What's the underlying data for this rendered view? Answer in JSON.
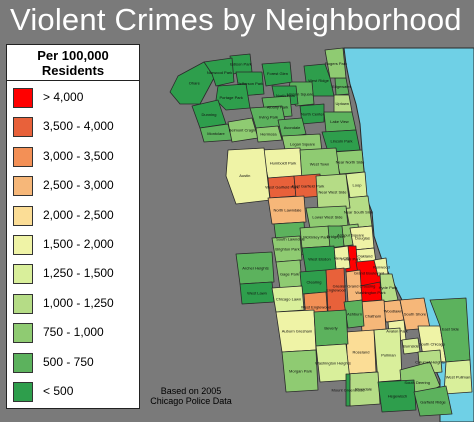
{
  "title": "Violent Crimes by Neighborhood",
  "legend": {
    "title_line1": "Per 100,000",
    "title_line2": "Residents",
    "items": [
      {
        "label": "> 4,000",
        "color": "#ff0000"
      },
      {
        "label": "3,500 - 4,000",
        "color": "#e8613a"
      },
      {
        "label": "3,000 - 3,500",
        "color": "#f39056"
      },
      {
        "label": "2,500 - 3,000",
        "color": "#f6b779"
      },
      {
        "label": "2,000 - 2,500",
        "color": "#fbdd96"
      },
      {
        "label": "1,500 - 2,000",
        "color": "#eff3a6"
      },
      {
        "label": "1,250 - 1,500",
        "color": "#d9ef9b"
      },
      {
        "label": "1,000 - 1,250",
        "color": "#b5dc86"
      },
      {
        "label": "750 - 1,000",
        "color": "#8fcb72"
      },
      {
        "label": "500 - 750",
        "color": "#5cb25d"
      },
      {
        "label": "< 500",
        "color": "#2e9e4c"
      }
    ]
  },
  "source_line1": "Based on 2005",
  "source_line2": "Chicago Police Data",
  "colors": {
    "background": "#7a7a7a",
    "lake": "#6fd0e6",
    "border": "#2a2a2a"
  },
  "neighborhoods": [
    {
      "name": "Edgewater",
      "category": 9
    },
    {
      "name": "Uptown",
      "category": 7
    },
    {
      "name": "West Ridge",
      "category": 10
    },
    {
      "name": "Rogers Park",
      "category": 8
    },
    {
      "name": "Lincoln Square",
      "category": 9
    },
    {
      "name": "North Center",
      "category": 10
    },
    {
      "name": "Lake View",
      "category": 9
    },
    {
      "name": "Lincoln Park",
      "category": 10
    },
    {
      "name": "Near North Side",
      "category": 8
    },
    {
      "name": "Loop",
      "category": 6
    },
    {
      "name": "Near South Side",
      "category": 7
    },
    {
      "name": "Ohare",
      "category": 10
    },
    {
      "name": "Edison Park",
      "category": 10
    },
    {
      "name": "Norwood Park",
      "category": 10
    },
    {
      "name": "Jefferson Park",
      "category": 10
    },
    {
      "name": "Forest Glen",
      "category": 10
    },
    {
      "name": "North Park",
      "category": 10
    },
    {
      "name": "Albany Park",
      "category": 9
    },
    {
      "name": "Portage Park",
      "category": 10
    },
    {
      "name": "Irving Park",
      "category": 9
    },
    {
      "name": "Dunning",
      "category": 10
    },
    {
      "name": "Montclare",
      "category": 9
    },
    {
      "name": "Belmont Cragin",
      "category": 8
    },
    {
      "name": "Hermosa",
      "category": 8
    },
    {
      "name": "Avondale",
      "category": 9
    },
    {
      "name": "Logan Square",
      "category": 8
    },
    {
      "name": "Humboldt Park",
      "category": 5
    },
    {
      "name": "West Town",
      "category": 8
    },
    {
      "name": "Austin",
      "category": 5
    },
    {
      "name": "West Garfield Park",
      "category": 1
    },
    {
      "name": "East Garfield Park",
      "category": 1
    },
    {
      "name": "Near West Side",
      "category": 7
    },
    {
      "name": "North Lawndale",
      "category": 3
    },
    {
      "name": "South Lawndale",
      "category": 9
    },
    {
      "name": "Lower West Side",
      "category": 8
    },
    {
      "name": "Armour Square",
      "category": 8
    },
    {
      "name": "Douglas",
      "category": 5
    },
    {
      "name": "Oakland",
      "category": 5
    },
    {
      "name": "Fuller Park",
      "category": 0
    },
    {
      "name": "Grand Boulevard",
      "category": 0
    },
    {
      "name": "Kenwood",
      "category": 5
    },
    {
      "name": "Washington Park",
      "category": 0
    },
    {
      "name": "Hyde Park",
      "category": 7
    },
    {
      "name": "Woodlawn",
      "category": 3
    },
    {
      "name": "South Shore",
      "category": 3
    },
    {
      "name": "Chatham",
      "category": 3
    },
    {
      "name": "Avalon Park",
      "category": 5
    },
    {
      "name": "South Chicago",
      "category": 5
    },
    {
      "name": "Burnside",
      "category": 6
    },
    {
      "name": "Calumet Heights",
      "category": 7
    },
    {
      "name": "Roseland",
      "category": 4
    },
    {
      "name": "Pullman",
      "category": 6
    },
    {
      "name": "South Deering",
      "category": 8
    },
    {
      "name": "East Side",
      "category": 9
    },
    {
      "name": "West Pullman",
      "category": 6
    },
    {
      "name": "Riverdale",
      "category": 7
    },
    {
      "name": "Hegewisch",
      "category": 10
    },
    {
      "name": "Garfield Ridge",
      "category": 9
    },
    {
      "name": "Archer Heights",
      "category": 9
    },
    {
      "name": "Brighton Park",
      "category": 8
    },
    {
      "name": "McKinley Park",
      "category": 8
    },
    {
      "name": "Bridgeport",
      "category": 9
    },
    {
      "name": "New City",
      "category": 5
    },
    {
      "name": "West Elsdon",
      "category": 10
    },
    {
      "name": "Gage Park",
      "category": 8
    },
    {
      "name": "Clearing",
      "category": 10
    },
    {
      "name": "West Lawn",
      "category": 10
    },
    {
      "name": "Chicago Lawn",
      "category": 6
    },
    {
      "name": "West Englewood",
      "category": 2
    },
    {
      "name": "Englewood",
      "category": 1
    },
    {
      "name": "Greater Grand Crossing",
      "category": 3
    },
    {
      "name": "Ashburn",
      "category": 9
    },
    {
      "name": "Auburn Gresham",
      "category": 5
    },
    {
      "name": "Beverly",
      "category": 9
    },
    {
      "name": "Washington Heights",
      "category": 6
    },
    {
      "name": "Mount Greenwood",
      "category": 10
    },
    {
      "name": "Morgan Park",
      "category": 8
    }
  ]
}
